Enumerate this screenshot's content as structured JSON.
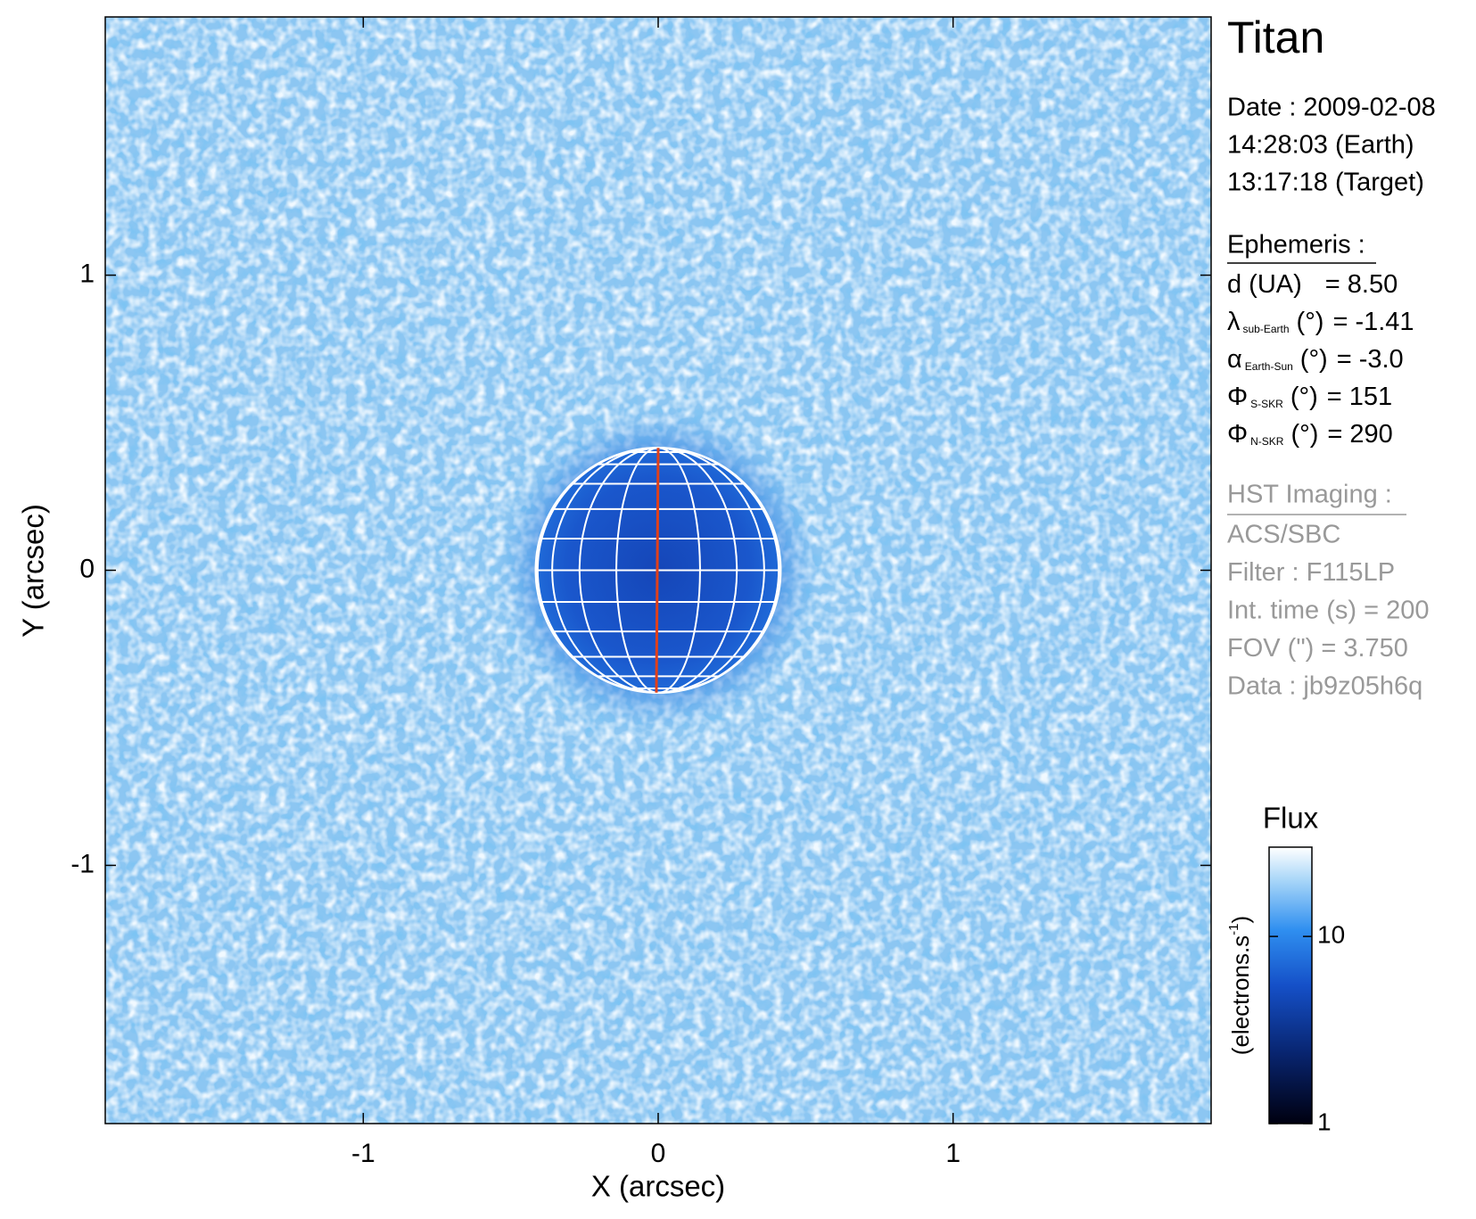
{
  "chart_data": {
    "type": "image",
    "title": "Titan",
    "xlabel": "X (arcsec)",
    "ylabel": "Y (arcsec)",
    "xlim": [
      -1.875,
      1.875
    ],
    "ylim": [
      -1.875,
      1.875
    ],
    "xticks": [
      -1,
      0,
      1
    ],
    "yticks": [
      -1,
      0,
      1
    ],
    "disk": {
      "x": 0,
      "y": 0,
      "radius": 0.415
    },
    "colorbar": {
      "title": "Flux",
      "label": "(electrons.s",
      "label_superscript": "-1",
      "label_end": ")",
      "scale": "log",
      "clim": [
        1,
        30
      ],
      "cticks": [
        1,
        10
      ]
    }
  },
  "info": {
    "date": [
      "Date : 2009-02-08",
      "14:28:03 (Earth)",
      "13:17:18 (Target)"
    ],
    "ephemeris": {
      "header": "Ephemeris :",
      "lines": [
        {
          "symbol": "d (UA)",
          "value": "= 8.50"
        },
        {
          "symbol": "λ",
          "sub": "sub-Earth",
          "unit": "(°)",
          "value": "= -1.41"
        },
        {
          "symbol": "α",
          "sub": "Earth-Sun",
          "unit": "(°)",
          "value": "= -3.0"
        },
        {
          "symbol": "Φ",
          "sub": "S-SKR",
          "unit": "(°)",
          "value": "= 151"
        },
        {
          "symbol": "Φ",
          "sub": "N-SKR",
          "unit": "(°)",
          "value": "= 290"
        }
      ]
    },
    "imaging": {
      "header": "HST Imaging :",
      "lines": [
        "ACS/SBC",
        "Filter : F115LP",
        "Int. time (s) = 200",
        "FOV (\") = 3.750",
        "Data : jb9z05h6q"
      ]
    }
  }
}
